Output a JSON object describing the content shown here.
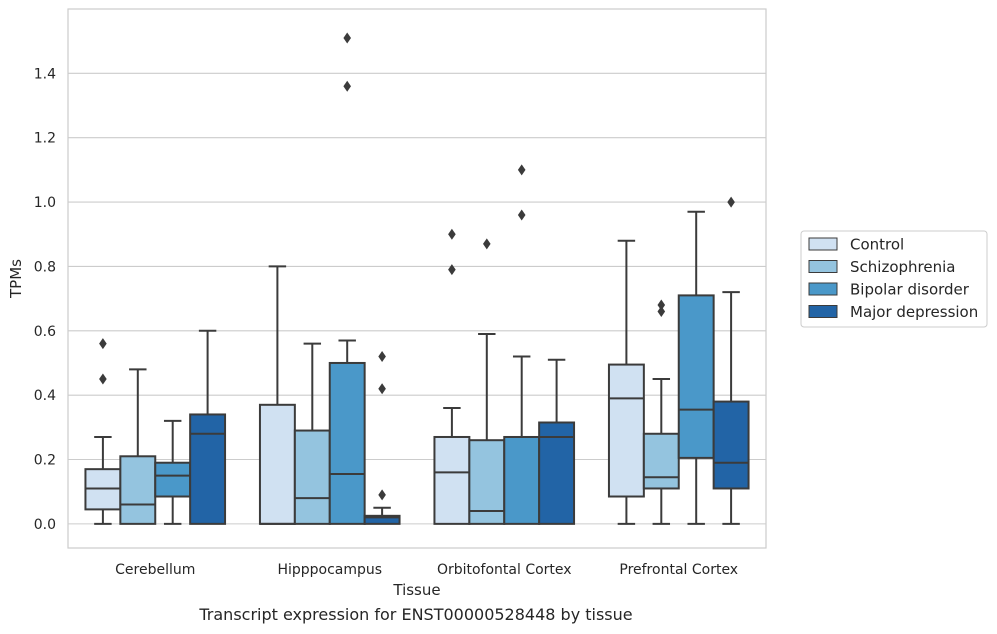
{
  "caption": "Transcript expression for ENST00000528448 by tissue",
  "chart_data": {
    "type": "box",
    "title": "",
    "xlabel": "Tissue",
    "ylabel": "TPMs",
    "ylim": [
      -0.075,
      1.6
    ],
    "yticks": [
      "0.0",
      "0.2",
      "0.4",
      "0.6",
      "0.8",
      "1.0",
      "1.2",
      "1.4"
    ],
    "grid": true,
    "legend_position": "right",
    "categories": [
      "Cerebellum",
      "Hipppocampus",
      "Orbitofontal Cortex",
      "Prefrontal Cortex"
    ],
    "series": [
      {
        "name": "Control",
        "color": "#d0e1f2",
        "boxes": [
          {
            "whisker_low": 0.0,
            "q1": 0.045,
            "median": 0.11,
            "q3": 0.17,
            "whisker_high": 0.27,
            "outliers": [
              0.45,
              0.56
            ]
          },
          {
            "whisker_low": 0.0,
            "q1": 0.0,
            "median": 0.0,
            "q3": 0.37,
            "whisker_high": 0.8,
            "outliers": []
          },
          {
            "whisker_low": 0.0,
            "q1": 0.0,
            "median": 0.16,
            "q3": 0.27,
            "whisker_high": 0.36,
            "outliers": [
              0.79,
              0.9
            ]
          },
          {
            "whisker_low": 0.0,
            "q1": 0.085,
            "median": 0.39,
            "q3": 0.495,
            "whisker_high": 0.88,
            "outliers": []
          }
        ]
      },
      {
        "name": "Schizophrenia",
        "color": "#94c4df",
        "boxes": [
          {
            "whisker_low": 0.0,
            "q1": 0.0,
            "median": 0.06,
            "q3": 0.21,
            "whisker_high": 0.48,
            "outliers": []
          },
          {
            "whisker_low": 0.0,
            "q1": 0.0,
            "median": 0.08,
            "q3": 0.29,
            "whisker_high": 0.56,
            "outliers": []
          },
          {
            "whisker_low": 0.0,
            "q1": 0.0,
            "median": 0.04,
            "q3": 0.26,
            "whisker_high": 0.59,
            "outliers": [
              0.87
            ]
          },
          {
            "whisker_low": 0.0,
            "q1": 0.11,
            "median": 0.145,
            "q3": 0.28,
            "whisker_high": 0.45,
            "outliers": [
              0.66,
              0.68
            ]
          }
        ]
      },
      {
        "name": "Bipolar disorder",
        "color": "#4a98c9",
        "boxes": [
          {
            "whisker_low": 0.0,
            "q1": 0.085,
            "median": 0.15,
            "q3": 0.19,
            "whisker_high": 0.32,
            "outliers": []
          },
          {
            "whisker_low": 0.0,
            "q1": 0.0,
            "median": 0.155,
            "q3": 0.5,
            "whisker_high": 0.57,
            "outliers": [
              1.36,
              1.51
            ]
          },
          {
            "whisker_low": 0.0,
            "q1": 0.0,
            "median": 0.27,
            "q3": 0.27,
            "whisker_high": 0.52,
            "outliers": [
              0.96,
              1.1
            ]
          },
          {
            "whisker_low": 0.0,
            "q1": 0.205,
            "median": 0.355,
            "q3": 0.71,
            "whisker_high": 0.97,
            "outliers": []
          }
        ]
      },
      {
        "name": "Major depression",
        "color": "#2264a6",
        "boxes": [
          {
            "whisker_low": 0.0,
            "q1": 0.0,
            "median": 0.28,
            "q3": 0.34,
            "whisker_high": 0.6,
            "outliers": []
          },
          {
            "whisker_low": 0.0,
            "q1": 0.0,
            "median": 0.02,
            "q3": 0.025,
            "whisker_high": 0.05,
            "outliers": [
              0.09,
              0.42,
              0.52
            ]
          },
          {
            "whisker_low": 0.0,
            "q1": 0.0,
            "median": 0.27,
            "q3": 0.315,
            "whisker_high": 0.51,
            "outliers": []
          },
          {
            "whisker_low": 0.0,
            "q1": 0.11,
            "median": 0.19,
            "q3": 0.38,
            "whisker_high": 0.72,
            "outliers": [
              1.0
            ]
          }
        ]
      }
    ]
  }
}
